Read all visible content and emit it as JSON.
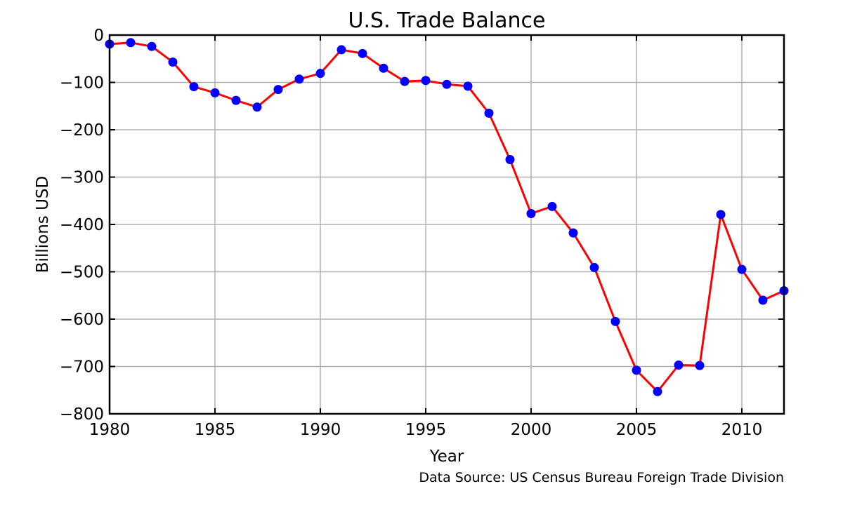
{
  "chart_data": {
    "type": "line",
    "title": "U.S. Trade Balance",
    "xlabel": "Year",
    "ylabel": "Billions USD",
    "source": "Data Source: US Census Bureau Foreign Trade Division",
    "xlim": [
      1980,
      2012
    ],
    "ylim": [
      -800,
      0
    ],
    "xticks": [
      1980,
      1985,
      1990,
      1995,
      2000,
      2005,
      2010
    ],
    "yticks": [
      0,
      -100,
      -200,
      -300,
      -400,
      -500,
      -600,
      -700,
      -800
    ],
    "ytick_labels": [
      "0",
      "−100",
      "−200",
      "−300",
      "−400",
      "−500",
      "−600",
      "−700",
      "−800"
    ],
    "grid": true,
    "line_color": "#ff0000",
    "marker_color": "#0000ff",
    "x": [
      1980,
      1981,
      1982,
      1983,
      1984,
      1985,
      1986,
      1987,
      1988,
      1989,
      1990,
      1991,
      1992,
      1993,
      1994,
      1995,
      1996,
      1997,
      1998,
      1999,
      2000,
      2001,
      2002,
      2003,
      2004,
      2005,
      2006,
      2007,
      2008,
      2009,
      2010,
      2011,
      2012
    ],
    "values": [
      -19,
      -16,
      -24,
      -57,
      -109,
      -122,
      -138,
      -152,
      -115,
      -93,
      -81,
      -31,
      -39,
      -70,
      -98,
      -96,
      -104,
      -108,
      -165,
      -263,
      -377,
      -362,
      -418,
      -491,
      -605,
      -708,
      -753,
      -697,
      -698,
      -379,
      -495,
      -560,
      -540
    ]
  }
}
